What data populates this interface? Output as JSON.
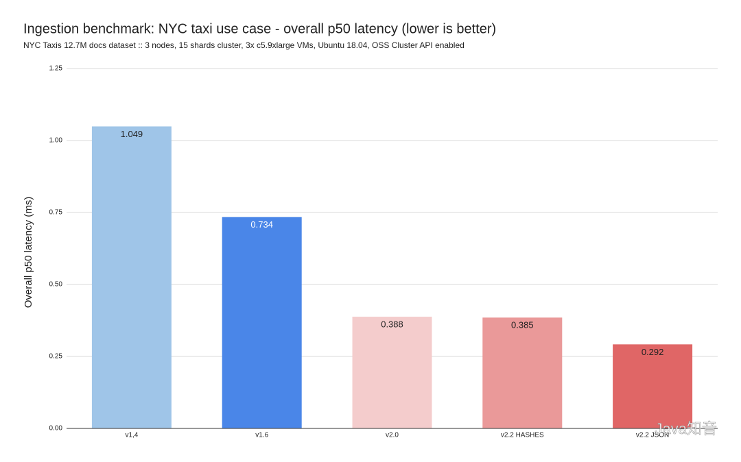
{
  "chart_data": {
    "type": "bar",
    "title": "Ingestion benchmark: NYC taxi use case - overall p50 latency (lower is better)",
    "subtitle": "NYC Taxis 12.7M docs dataset :: 3 nodes, 15 shards cluster, 3x c5.9xlarge VMs, Ubuntu 18.04, OSS Cluster API enabled",
    "y_label": "Overall p50 latency (ms)",
    "categories": [
      "v1,4",
      "v1.6",
      "v2.0",
      "v2.2 HASHES",
      "v2.2 JSON"
    ],
    "values": [
      1.049,
      0.734,
      0.388,
      0.385,
      0.292
    ],
    "colors": [
      "#9fc5e8",
      "#4a86e8",
      "#f4cccc",
      "#ea9999",
      "#e06666"
    ],
    "label_colors": [
      "#222222",
      "#ffffff",
      "#222222",
      "#222222",
      "#222222"
    ],
    "ylim": [
      0,
      1.25
    ],
    "yticks": [
      {
        "value": 0,
        "label": "0.00"
      },
      0.25,
      {
        "value": 0.5,
        "label": "0.50"
      },
      0.75,
      {
        "value": 1,
        "label": "1.00"
      },
      1.25
    ],
    "grid": true,
    "watermark": "Java知音"
  }
}
